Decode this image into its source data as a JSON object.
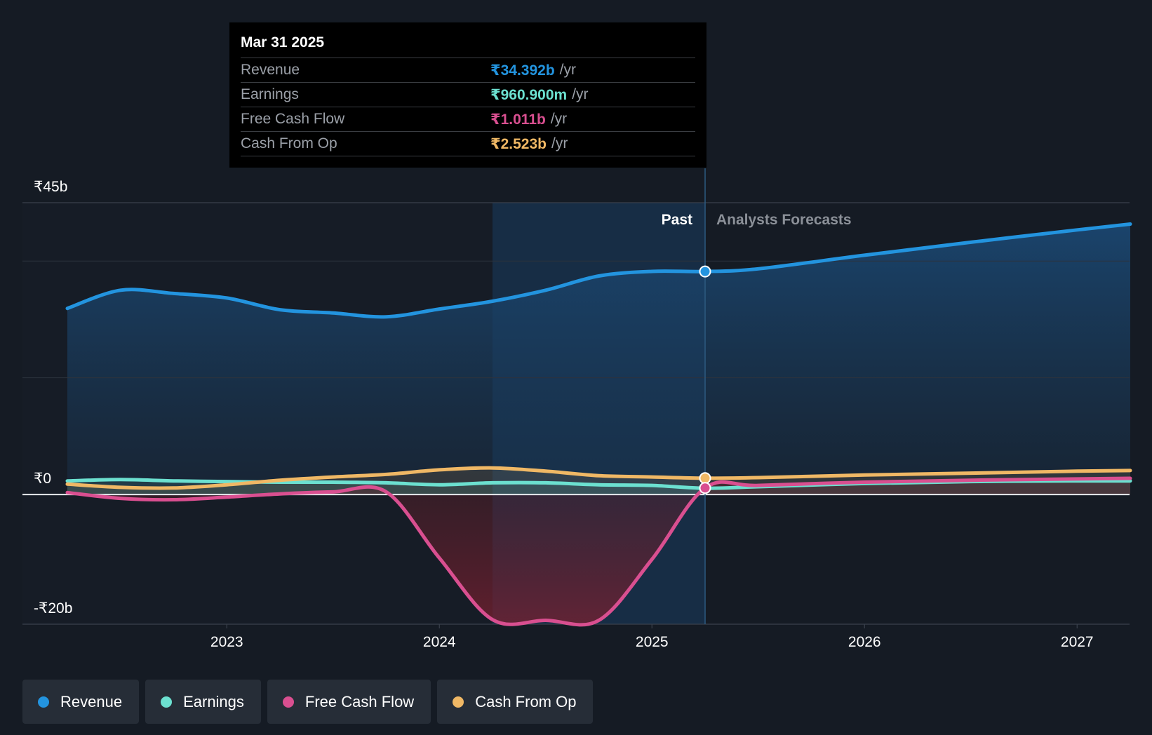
{
  "tooltip": {
    "date": "Mar 31 2025",
    "unit": "/yr",
    "rows": [
      {
        "label": "Revenue",
        "value": "₹34.392b",
        "color": "#2394df"
      },
      {
        "label": "Earnings",
        "value": "₹960.900m",
        "color": "#6ce0d0"
      },
      {
        "label": "Free Cash Flow",
        "value": "₹1.011b",
        "color": "#d94f90"
      },
      {
        "label": "Cash From Op",
        "value": "₹2.523b",
        "color": "#f0b865"
      }
    ]
  },
  "regions": {
    "past": "Past",
    "forecast": "Analysts Forecasts"
  },
  "legend": [
    {
      "label": "Revenue",
      "color": "#2394df"
    },
    {
      "label": "Earnings",
      "color": "#6ce0d0"
    },
    {
      "label": "Free Cash Flow",
      "color": "#d94f90"
    },
    {
      "label": "Cash From Op",
      "color": "#f0b865"
    }
  ],
  "chart_data": {
    "type": "line",
    "title": "",
    "xlabel": "",
    "ylabel": "",
    "y_tick_labels": [
      "₹45b",
      "₹0",
      "-₹20b"
    ],
    "y_ticks": [
      45,
      0,
      -20
    ],
    "ylim": [
      -20,
      45
    ],
    "xlim": [
      2022.25,
      2027.25
    ],
    "x_ticks": [
      2023,
      2024,
      2025,
      2026,
      2027
    ],
    "x_tick_labels": [
      "2023",
      "2024",
      "2025",
      "2026",
      "2027"
    ],
    "past_forecast_split": 2025.25,
    "highlight_start": 2024.25,
    "grid": true,
    "series": [
      {
        "name": "Revenue",
        "color": "#2394df",
        "points": [
          [
            2022.25,
            28.7
          ],
          [
            2022.5,
            31.5
          ],
          [
            2022.75,
            31.0
          ],
          [
            2023.0,
            30.3
          ],
          [
            2023.25,
            28.5
          ],
          [
            2023.5,
            28.0
          ],
          [
            2023.75,
            27.4
          ],
          [
            2024.0,
            28.6
          ],
          [
            2024.25,
            29.8
          ],
          [
            2024.5,
            31.5
          ],
          [
            2024.75,
            33.7
          ],
          [
            2025.0,
            34.4
          ],
          [
            2025.25,
            34.39
          ],
          [
            2025.5,
            34.8
          ],
          [
            2026.0,
            36.9
          ],
          [
            2026.5,
            38.9
          ],
          [
            2027.0,
            40.8
          ],
          [
            2027.25,
            41.7
          ]
        ]
      },
      {
        "name": "Earnings",
        "color": "#6ce0d0",
        "points": [
          [
            2022.25,
            2.1
          ],
          [
            2022.5,
            2.3
          ],
          [
            2022.75,
            2.1
          ],
          [
            2023.0,
            2.0
          ],
          [
            2023.25,
            1.9
          ],
          [
            2023.5,
            1.9
          ],
          [
            2023.75,
            1.8
          ],
          [
            2024.0,
            1.5
          ],
          [
            2024.25,
            1.8
          ],
          [
            2024.5,
            1.8
          ],
          [
            2024.75,
            1.5
          ],
          [
            2025.0,
            1.4
          ],
          [
            2025.25,
            0.96
          ],
          [
            2025.5,
            1.2
          ],
          [
            2026.0,
            1.7
          ],
          [
            2026.5,
            2.0
          ],
          [
            2027.0,
            2.1
          ],
          [
            2027.25,
            2.1
          ]
        ]
      },
      {
        "name": "Free Cash Flow",
        "color": "#d94f90",
        "points": [
          [
            2022.25,
            0.3
          ],
          [
            2022.5,
            -0.6
          ],
          [
            2022.75,
            -0.8
          ],
          [
            2023.0,
            -0.4
          ],
          [
            2023.25,
            0.1
          ],
          [
            2023.5,
            0.4
          ],
          [
            2023.75,
            0.4
          ],
          [
            2024.0,
            -9.8
          ],
          [
            2024.25,
            -19.3
          ],
          [
            2024.5,
            -19.4
          ],
          [
            2024.75,
            -19.4
          ],
          [
            2025.0,
            -10.0
          ],
          [
            2025.25,
            1.01
          ],
          [
            2025.5,
            1.4
          ],
          [
            2026.0,
            1.9
          ],
          [
            2026.5,
            2.2
          ],
          [
            2027.0,
            2.4
          ],
          [
            2027.25,
            2.5
          ]
        ]
      },
      {
        "name": "Cash From Op",
        "color": "#f0b865",
        "points": [
          [
            2022.25,
            1.6
          ],
          [
            2022.5,
            1.1
          ],
          [
            2022.75,
            1.0
          ],
          [
            2023.0,
            1.5
          ],
          [
            2023.25,
            2.2
          ],
          [
            2023.5,
            2.7
          ],
          [
            2023.75,
            3.1
          ],
          [
            2024.0,
            3.8
          ],
          [
            2024.25,
            4.1
          ],
          [
            2024.5,
            3.6
          ],
          [
            2024.75,
            2.9
          ],
          [
            2025.0,
            2.7
          ],
          [
            2025.25,
            2.52
          ],
          [
            2025.5,
            2.6
          ],
          [
            2026.0,
            3.0
          ],
          [
            2026.5,
            3.3
          ],
          [
            2027.0,
            3.6
          ],
          [
            2027.25,
            3.7
          ]
        ]
      }
    ]
  }
}
